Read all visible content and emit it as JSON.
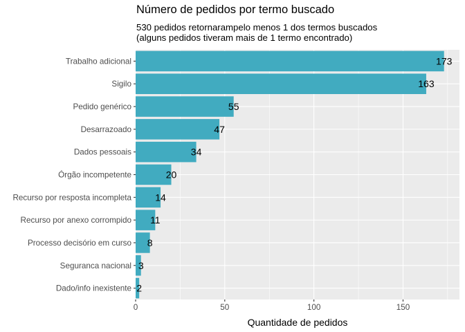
{
  "chart_data": {
    "type": "bar",
    "orientation": "horizontal",
    "title": "Número de pedidos por termo buscado",
    "subtitle": [
      "530 pedidos retornarampelo menos 1 dos termos buscados",
      "(alguns pedidos tiveram mais de 1 termo encontrado)"
    ],
    "xlabel": "Quantidade de pedidos",
    "ylabel": "",
    "categories": [
      "Trabalho adicional",
      "Sigilo",
      "Pedido genérico",
      "Desarrazoado",
      "Dados pessoais",
      "Órgão incompetente",
      "Recurso por resposta incompleta",
      "Recurso por anexo corrompido",
      "Processo decisório em curso",
      "Seguranca nacional",
      "Dado/info inexistente"
    ],
    "values": [
      173,
      163,
      55,
      47,
      34,
      20,
      14,
      11,
      8,
      3,
      2
    ],
    "data_labels": [
      "173",
      "163",
      "55",
      "47",
      "34",
      "20",
      "14",
      "11",
      "8",
      "3",
      "2"
    ],
    "xlim": [
      0,
      181.65
    ],
    "xticks": [
      0,
      50,
      100,
      150
    ],
    "xtick_labels": [
      "0",
      "50",
      "100",
      "150"
    ],
    "bar_color": "#41abc0",
    "panel_background": "#ebebeb",
    "grid_color": "#ffffff",
    "grid": true,
    "legend": "none"
  }
}
